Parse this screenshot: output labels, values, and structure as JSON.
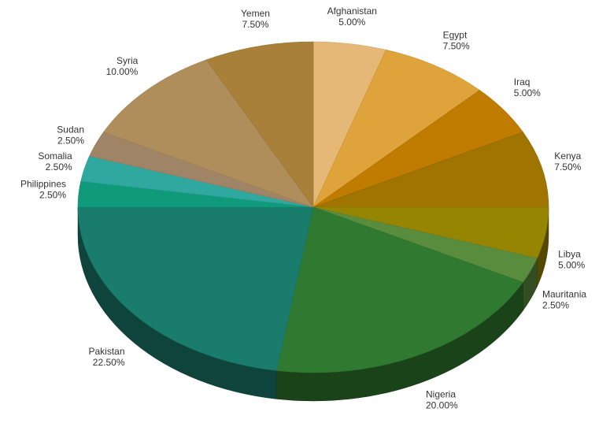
{
  "chart_data": {
    "type": "pie",
    "style": "3d",
    "title": "",
    "legend": "none",
    "slices": [
      {
        "label": "Afghanistan",
        "value": 5.0,
        "pct": "5.00%",
        "color": "#e6b877"
      },
      {
        "label": "Egypt",
        "value": 7.5,
        "pct": "7.50%",
        "color": "#dea43b"
      },
      {
        "label": "Iraq",
        "value": 5.0,
        "pct": "5.00%",
        "color": "#bf7c00"
      },
      {
        "label": "Kenya",
        "value": 7.5,
        "pct": "7.50%",
        "color": "#a07400"
      },
      {
        "label": "Libya",
        "value": 5.0,
        "pct": "5.00%",
        "color": "#968500"
      },
      {
        "label": "Mauritania",
        "value": 2.5,
        "pct": "2.50%",
        "color": "#5a8c3e"
      },
      {
        "label": "Nigeria",
        "value": 20.0,
        "pct": "20.00%",
        "color": "#2f7a30"
      },
      {
        "label": "Pakistan",
        "value": 22.5,
        "pct": "22.50%",
        "color": "#1a7c6c"
      },
      {
        "label": "Philippines",
        "value": 2.5,
        "pct": "2.50%",
        "color": "#0f9a7a"
      },
      {
        "label": "Somalia",
        "value": 2.5,
        "pct": "2.50%",
        "color": "#2fa8a0"
      },
      {
        "label": "Sudan",
        "value": 2.5,
        "pct": "2.50%",
        "color": "#a08466"
      },
      {
        "label": "Syria",
        "value": 10.0,
        "pct": "10.00%",
        "color": "#b08e5c"
      },
      {
        "label": "Yemen",
        "value": 7.5,
        "pct": "7.50%",
        "color": "#a8803a"
      }
    ]
  }
}
